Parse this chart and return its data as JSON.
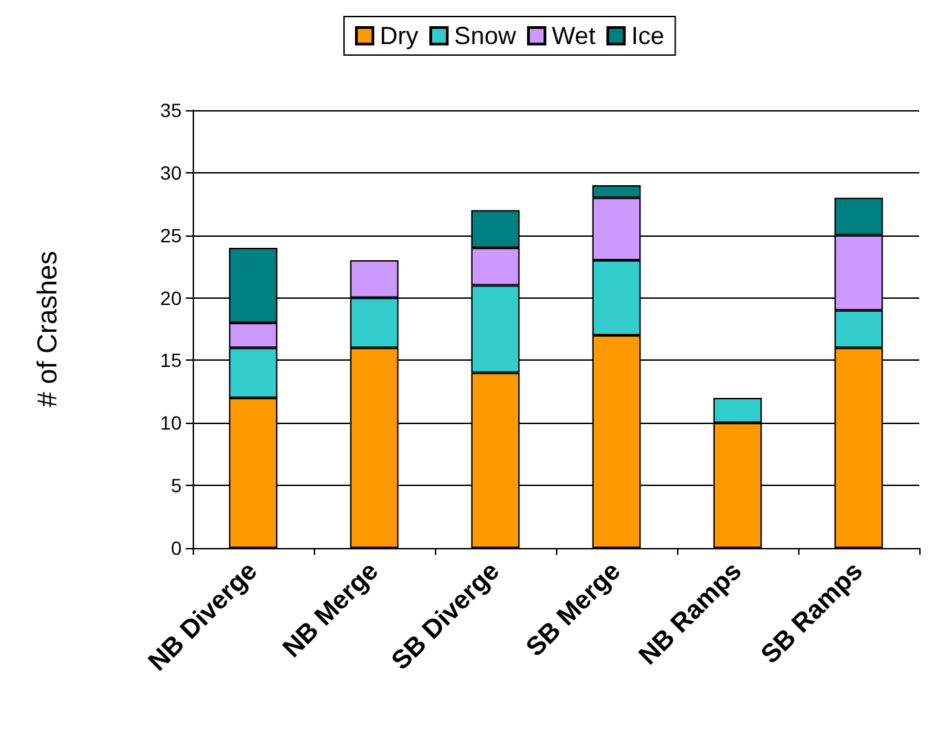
{
  "chart_data": {
    "type": "bar",
    "stacked": true,
    "ylabel": "# of Crashes",
    "categories": [
      "NB Diverge",
      "NB Merge",
      "SB Diverge",
      "SB Merge",
      "NB Ramps",
      "SB Ramps"
    ],
    "series": [
      {
        "name": "Dry",
        "color": "#ff9900",
        "values": [
          12,
          16,
          14,
          17,
          10,
          16
        ]
      },
      {
        "name": "Snow",
        "color": "#33cccc",
        "values": [
          4,
          4,
          7,
          6,
          2,
          3
        ]
      },
      {
        "name": "Wet",
        "color": "#cc99ff",
        "values": [
          2,
          3,
          3,
          5,
          0,
          6
        ]
      },
      {
        "name": "Ice",
        "color": "#008080",
        "values": [
          6,
          0,
          3,
          1,
          0,
          3
        ]
      }
    ],
    "ylim": [
      0,
      35
    ],
    "yticks": [
      0,
      5,
      10,
      15,
      20,
      25,
      30,
      35
    ],
    "grid": "y",
    "legend": "top"
  }
}
